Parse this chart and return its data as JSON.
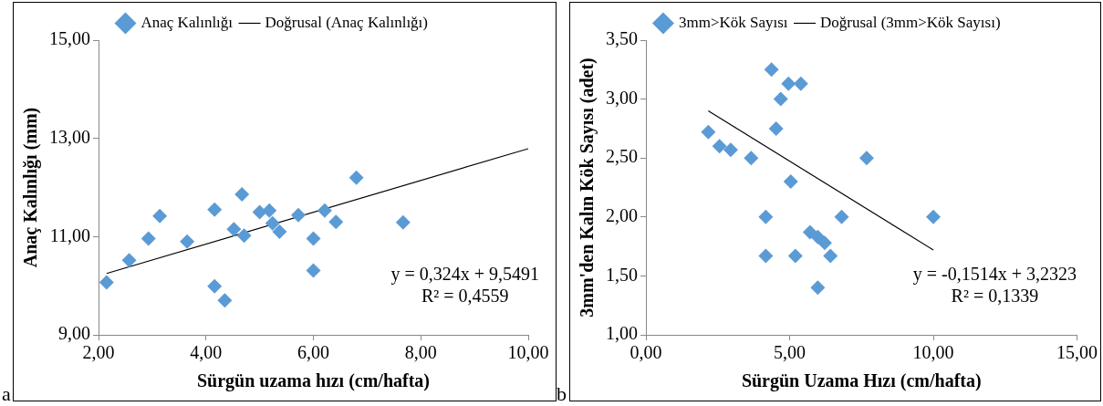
{
  "chart_data": [
    {
      "type": "scatter",
      "xlabel": "Sürgün uzama hızı (cm/hafta)",
      "ylabel": "Anaç Kalınlığı (mm)",
      "xlim": [
        2,
        10
      ],
      "xticks": [
        {
          "value": 2,
          "label": "2,00"
        },
        {
          "value": 4,
          "label": "4,00"
        },
        {
          "value": 6,
          "label": "6,00"
        },
        {
          "value": 8,
          "label": "8,00"
        },
        {
          "value": 10,
          "label": "10,00"
        }
      ],
      "ylim": [
        9,
        15
      ],
      "yticks": [
        {
          "value": 9,
          "label": "9,00"
        },
        {
          "value": 11,
          "label": "11,00"
        },
        {
          "value": 13,
          "label": "13,00"
        },
        {
          "value": 15,
          "label": "15,00"
        }
      ],
      "grid": false,
      "legend": "top",
      "marker": "diamond",
      "annotations": [
        "y = 0,324x + 9,5491",
        "R² = 0,4559",
        "a"
      ],
      "series": [
        {
          "name": "Anaç Kalınlığı",
          "type": "scatter",
          "color": "#5b9bd5",
          "x": [
            2.15,
            2.57,
            2.93,
            3.14,
            3.65,
            4.16,
            4.16,
            4.35,
            4.52,
            4.67,
            4.71,
            5.0,
            5.18,
            5.24,
            5.37,
            5.72,
            6.0,
            6.0,
            6.21,
            6.42,
            6.8,
            7.67
          ],
          "values": [
            10.07,
            10.52,
            10.96,
            11.42,
            10.9,
            11.55,
            9.99,
            9.7,
            11.15,
            11.86,
            11.02,
            11.5,
            11.53,
            11.27,
            11.1,
            11.44,
            10.96,
            10.31,
            11.53,
            11.3,
            12.2,
            11.29
          ]
        },
        {
          "name": "Doğrusal (Anaç Kalınlığı)",
          "type": "line",
          "color": "#000000",
          "marker": "none",
          "x": [
            2.15,
            10
          ],
          "values": [
            10.25,
            12.79
          ]
        }
      ]
    },
    {
      "type": "scatter",
      "xlabel": "Sürgün Uzama Hızı (cm/hafta)",
      "ylabel": "3mm'den Kalın Kök Sayısı (adet)",
      "xlim": [
        0,
        15
      ],
      "xticks": [
        {
          "value": 0,
          "label": "0,00"
        },
        {
          "value": 5,
          "label": "5,00"
        },
        {
          "value": 10,
          "label": "10,00"
        },
        {
          "value": 15,
          "label": "15,00"
        }
      ],
      "ylim": [
        1,
        3.5
      ],
      "yticks": [
        {
          "value": 1,
          "label": "1,00"
        },
        {
          "value": 1.5,
          "label": "1,50"
        },
        {
          "value": 2,
          "label": "2,00"
        },
        {
          "value": 2.5,
          "label": "2,50"
        },
        {
          "value": 3,
          "label": "3,00"
        },
        {
          "value": 3.5,
          "label": "3,50"
        }
      ],
      "grid": false,
      "legend": "top",
      "marker": "diamond",
      "annotations": [
        "y = -0,1514x + 3,2323",
        "R² = 0,1339",
        "b"
      ],
      "series": [
        {
          "name": "3mm>Kök Sayısı",
          "type": "scatter",
          "color": "#5b9bd5",
          "x": [
            4.37,
            4.96,
            5.39,
            4.69,
            4.53,
            2.17,
            2.56,
            2.95,
            3.66,
            7.68,
            5.04,
            4.17,
            6.81,
            10.0,
            5.71,
            5.98,
            6.22,
            4.17,
            5.2,
            6.42,
            5.98
          ],
          "values": [
            3.25,
            3.13,
            3.13,
            3.0,
            2.75,
            2.72,
            2.6,
            2.57,
            2.5,
            2.5,
            2.3,
            2.0,
            2.0,
            2.0,
            1.87,
            1.83,
            1.78,
            1.67,
            1.67,
            1.67,
            1.4
          ]
        },
        {
          "name": "Doğrusal (3mm>Kök Sayısı)",
          "type": "line",
          "color": "#000000",
          "marker": "none",
          "x": [
            2.17,
            10
          ],
          "values": [
            2.9,
            1.72
          ]
        }
      ]
    }
  ]
}
